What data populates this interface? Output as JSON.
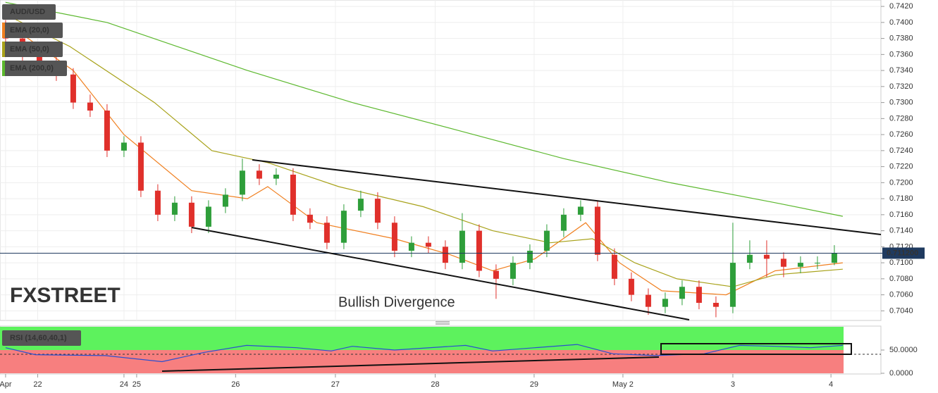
{
  "chart_data": [
    {
      "type": "candlestick",
      "name": "AUD/USD",
      "up_color": "#2e9e3a",
      "down_color": "#e0302b",
      "annotation": "Bullish Divergence",
      "watermark": "FXSTREET",
      "last_price": 0.7112,
      "last_price_label": "0.711200",
      "xlim": [
        -0.33,
        51.67
      ],
      "ylim": [
        0.7028,
        0.7428
      ],
      "yticks": [
        {
          "value": 0.704,
          "label": "0.7040"
        },
        {
          "value": 0.706,
          "label": "0.7060"
        },
        {
          "value": 0.708,
          "label": "0.7080"
        },
        {
          "value": 0.71,
          "label": "0.7100"
        },
        {
          "value": 0.712,
          "label": "0.7120"
        },
        {
          "value": 0.714,
          "label": "0.7140"
        },
        {
          "value": 0.716,
          "label": "0.7160"
        },
        {
          "value": 0.718,
          "label": "0.7180"
        },
        {
          "value": 0.72,
          "label": "0.7200"
        },
        {
          "value": 0.722,
          "label": "0.7220"
        },
        {
          "value": 0.724,
          "label": "0.7240"
        },
        {
          "value": 0.726,
          "label": "0.7260"
        },
        {
          "value": 0.728,
          "label": "0.7280"
        },
        {
          "value": 0.73,
          "label": "0.7300"
        },
        {
          "value": 0.732,
          "label": "0.7320"
        },
        {
          "value": 0.734,
          "label": "0.7340"
        },
        {
          "value": 0.736,
          "label": "0.7360"
        },
        {
          "value": 0.738,
          "label": "0.7380"
        },
        {
          "value": 0.74,
          "label": "0.7400"
        },
        {
          "value": 0.742,
          "label": "0.7420"
        }
      ],
      "grid": true,
      "ohlc": {
        "open": [
          0.7395,
          0.738,
          0.736,
          0.735,
          0.7335,
          0.73,
          0.729,
          0.724,
          0.725,
          0.719,
          0.716,
          0.7175,
          0.7145,
          0.717,
          0.7185,
          0.7215,
          0.7205,
          0.721,
          0.716,
          0.715,
          0.7125,
          0.7165,
          0.718,
          0.715,
          0.7115,
          0.7125,
          0.712,
          0.71,
          0.714,
          0.709,
          0.708,
          0.71,
          0.7115,
          0.714,
          0.716,
          0.717,
          0.711,
          0.708,
          0.706,
          0.7045,
          0.7055,
          0.707,
          0.705,
          0.7045,
          0.71,
          0.711,
          0.7105,
          0.7095,
          0.71,
          0.71
        ],
        "high": [
          0.7403,
          0.7388,
          0.7368,
          0.7358,
          0.7343,
          0.731,
          0.7298,
          0.7258,
          0.7258,
          0.7198,
          0.7183,
          0.7183,
          0.7178,
          0.7193,
          0.723,
          0.7223,
          0.7218,
          0.7218,
          0.7168,
          0.7158,
          0.7173,
          0.719,
          0.7188,
          0.7158,
          0.7133,
          0.7133,
          0.7128,
          0.7162,
          0.7148,
          0.7098,
          0.7108,
          0.7123,
          0.7148,
          0.7168,
          0.7178,
          0.7178,
          0.7118,
          0.7088,
          0.7068,
          0.7063,
          0.7078,
          0.7078,
          0.7058,
          0.715,
          0.7128,
          0.7128,
          0.7113,
          0.7108,
          0.7108,
          0.7122
        ],
        "low": [
          0.7372,
          0.7352,
          0.7342,
          0.7327,
          0.7292,
          0.7282,
          0.7232,
          0.7232,
          0.7182,
          0.7152,
          0.7152,
          0.7137,
          0.7137,
          0.7162,
          0.7177,
          0.7197,
          0.7197,
          0.7152,
          0.7142,
          0.7117,
          0.7117,
          0.7157,
          0.7142,
          0.7107,
          0.7107,
          0.7112,
          0.7092,
          0.7092,
          0.7082,
          0.7055,
          0.7072,
          0.7092,
          0.7107,
          0.7132,
          0.7152,
          0.7102,
          0.7072,
          0.7052,
          0.7035,
          0.7037,
          0.7047,
          0.7042,
          0.7032,
          0.7037,
          0.7092,
          0.7082,
          0.7082,
          0.7087,
          0.7092,
          0.7097
        ],
        "close": [
          0.738,
          0.736,
          0.735,
          0.7335,
          0.73,
          0.729,
          0.724,
          0.725,
          0.719,
          0.716,
          0.7175,
          0.7145,
          0.717,
          0.7185,
          0.7215,
          0.7205,
          0.721,
          0.716,
          0.715,
          0.7125,
          0.7165,
          0.718,
          0.715,
          0.7115,
          0.7125,
          0.712,
          0.71,
          0.714,
          0.709,
          0.708,
          0.71,
          0.7115,
          0.714,
          0.716,
          0.717,
          0.711,
          0.708,
          0.706,
          0.7045,
          0.7055,
          0.707,
          0.705,
          0.7045,
          0.71,
          0.711,
          0.7105,
          0.7095,
          0.71,
          0.71,
          0.7112
        ]
      },
      "series": [
        {
          "name": "EMA (20,0)",
          "color": "#f07f1f",
          "x": [
            0,
            4,
            7,
            11,
            14.3,
            15.5,
            18.4,
            23,
            26.3,
            28.8,
            31.3,
            34.3,
            36.3,
            38.8,
            42.6,
            45.5,
            49.5
          ],
          "values": [
            0.74,
            0.734,
            0.726,
            0.719,
            0.718,
            0.7195,
            0.715,
            0.713,
            0.711,
            0.709,
            0.7105,
            0.715,
            0.71,
            0.7065,
            0.706,
            0.709,
            0.71
          ]
        },
        {
          "name": "EMA (50,0)",
          "color": "#a8a21a",
          "x": [
            0,
            3.8,
            8.8,
            12.2,
            15.5,
            19.7,
            24.7,
            28.8,
            32.2,
            34.7,
            37.2,
            39.7,
            43,
            45.5,
            49.5
          ],
          "values": [
            0.741,
            0.737,
            0.73,
            0.724,
            0.7225,
            0.7195,
            0.717,
            0.714,
            0.7125,
            0.713,
            0.71,
            0.708,
            0.707,
            0.7085,
            0.7092
          ]
        },
        {
          "name": "EMA (200,0)",
          "color": "#5cb82e",
          "x": [
            0,
            6,
            14.3,
            20.5,
            26.8,
            33,
            39.3,
            45.5,
            49.5
          ],
          "values": [
            0.7425,
            0.74,
            0.734,
            0.73,
            0.7265,
            0.723,
            0.72,
            0.7175,
            0.7158
          ]
        }
      ]
    },
    {
      "type": "line",
      "xlim": [
        -0.33,
        51.67
      ],
      "ylim": [
        0,
        100
      ],
      "yticks": [
        {
          "value": 0,
          "label": "0.0000"
        },
        {
          "value": 50,
          "label": "50.0000"
        }
      ],
      "xticks": [
        {
          "value": 0,
          "label": "Apr"
        },
        {
          "value": 1.9,
          "label": "22"
        },
        {
          "value": 7,
          "label": "24"
        },
        {
          "value": 7.75,
          "label": "25"
        },
        {
          "value": 13.6,
          "label": "26"
        },
        {
          "value": 19.5,
          "label": "27"
        },
        {
          "value": 25.4,
          "label": "28"
        },
        {
          "value": 31.25,
          "label": "29"
        },
        {
          "value": 36.5,
          "label": "May 2"
        },
        {
          "value": 43,
          "label": "3"
        },
        {
          "value": 48.8,
          "label": "4"
        }
      ],
      "series": [
        {
          "name": "RSI (14,60,40,1)",
          "color": "#2a4fd0",
          "x": [
            0,
            1.75,
            5.9,
            9.25,
            11.75,
            14.25,
            17.2,
            19.25,
            20.5,
            23,
            27.2,
            28.8,
            31.3,
            33.8,
            35.9,
            38.4,
            41.3,
            43.4,
            45.5,
            47.6,
            49.5
          ],
          "values": [
            55,
            40,
            38,
            25,
            45,
            60,
            55,
            48,
            58,
            50,
            60,
            48,
            55,
            62,
            42,
            38,
            42,
            60,
            58,
            55,
            60
          ]
        }
      ]
    }
  ]
}
